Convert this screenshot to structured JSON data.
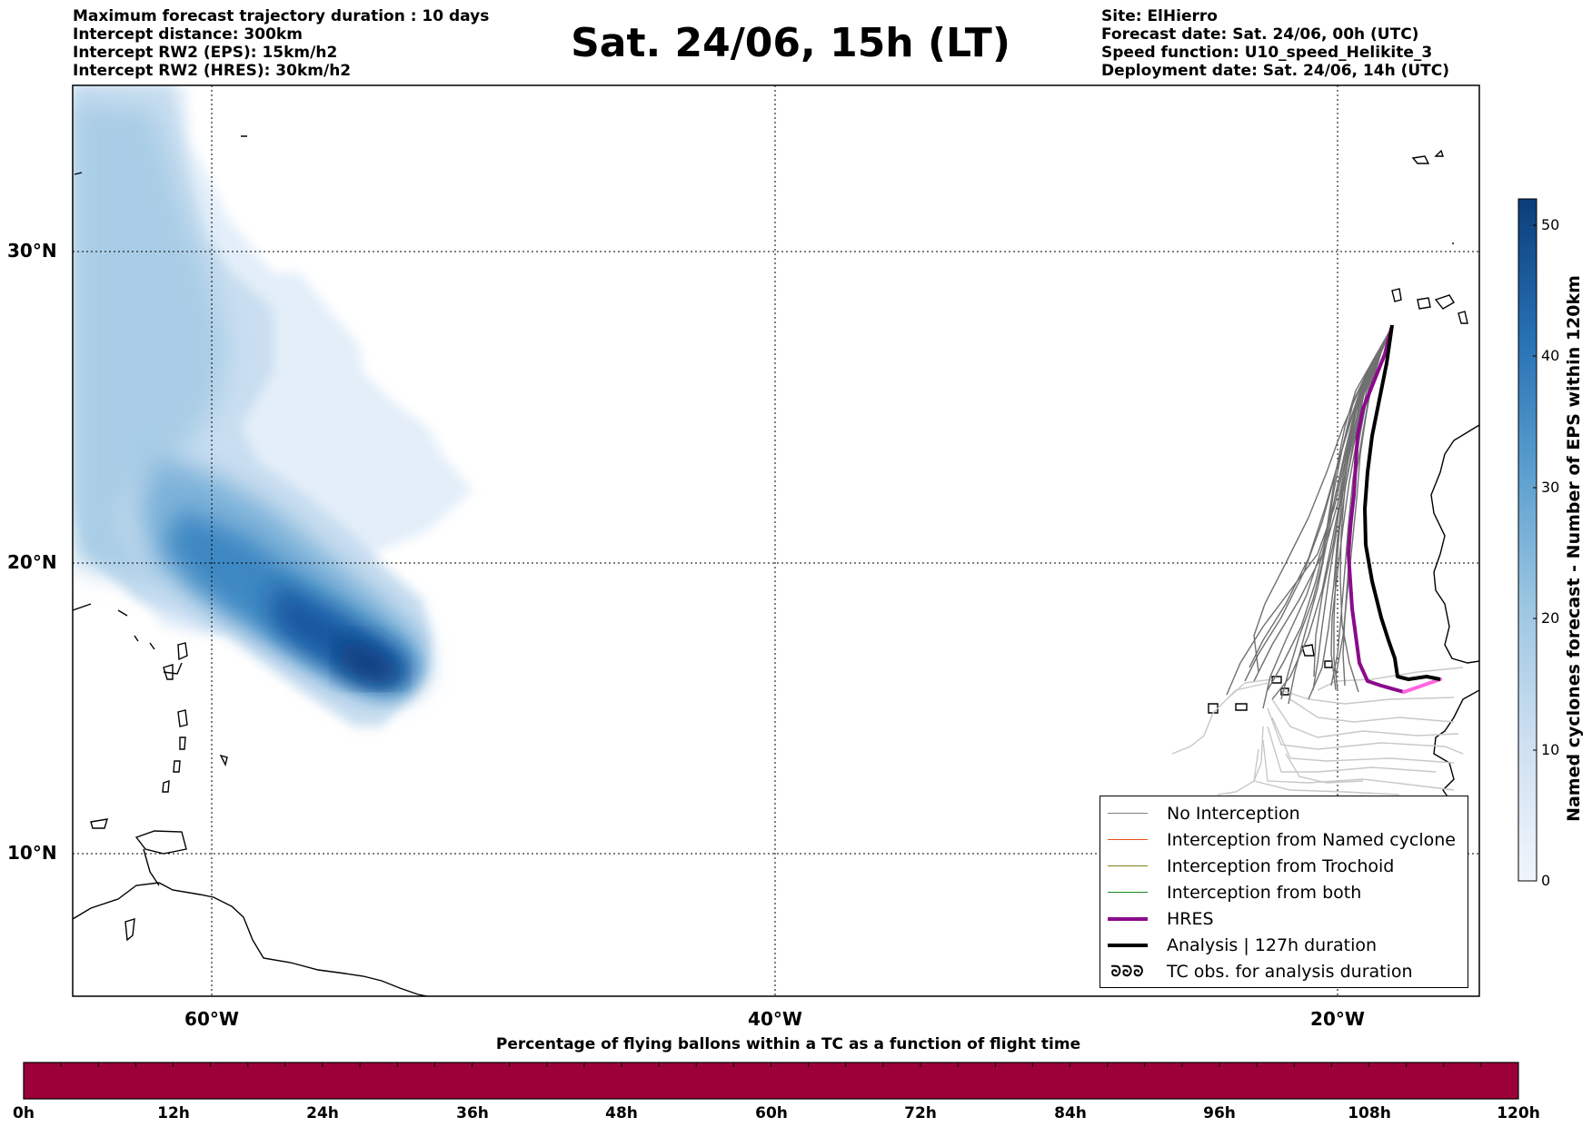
{
  "header": {
    "left_lines": [
      "Maximum forecast trajectory duration : 10 days",
      "Intercept distance: 300km",
      "Intercept RW2 (EPS):  15km/h2",
      "Intercept RW2 (HRES): 30km/h2"
    ],
    "title": "Sat. 24/06, 15h (LT)",
    "right_lines": [
      "Site: ElHierro",
      "Forecast date: Sat. 24/06, 00h (UTC)",
      "Speed function: U10_speed_Helikite_3",
      "Deployment date: Sat. 24/06, 14h (UTC)"
    ]
  },
  "map": {
    "lat_labels": [
      "30°N",
      "20°N",
      "10°N"
    ],
    "lon_labels": [
      "60°W",
      "40°W",
      "20°W"
    ]
  },
  "legend": {
    "items": [
      {
        "label": "No Interception",
        "color": "#808080",
        "width": 1.5
      },
      {
        "label": "Interception from Named cyclone",
        "color": "#e8501a",
        "width": 1.5
      },
      {
        "label": "Interception from Trochoid",
        "color": "#808020",
        "width": 1.5
      },
      {
        "label": "Interception from both",
        "color": "#1a8a1a",
        "width": 1.5
      },
      {
        "label": "HRES",
        "color": "#8b0a8b",
        "width": 4
      },
      {
        "label": "Analysis | 127h duration",
        "color": "#000000",
        "width": 4
      }
    ],
    "obs_symbol": "ᘐᘐᘐ",
    "obs_label": "TC obs. for analysis duration"
  },
  "colorbar": {
    "title": "Named cyclones forecast - Number of EPS within 120km",
    "ticks": [
      "0",
      "10",
      "20",
      "30",
      "40",
      "50"
    ],
    "min": 0,
    "max": 52
  },
  "flight_bar": {
    "title": "Percentage of flying ballons within a TC as a function of flight time",
    "time_labels": [
      "0h",
      "12h",
      "24h",
      "36h",
      "48h",
      "60h",
      "72h",
      "84h",
      "96h",
      "108h",
      "120h"
    ],
    "fill_color": "#9c0038"
  }
}
